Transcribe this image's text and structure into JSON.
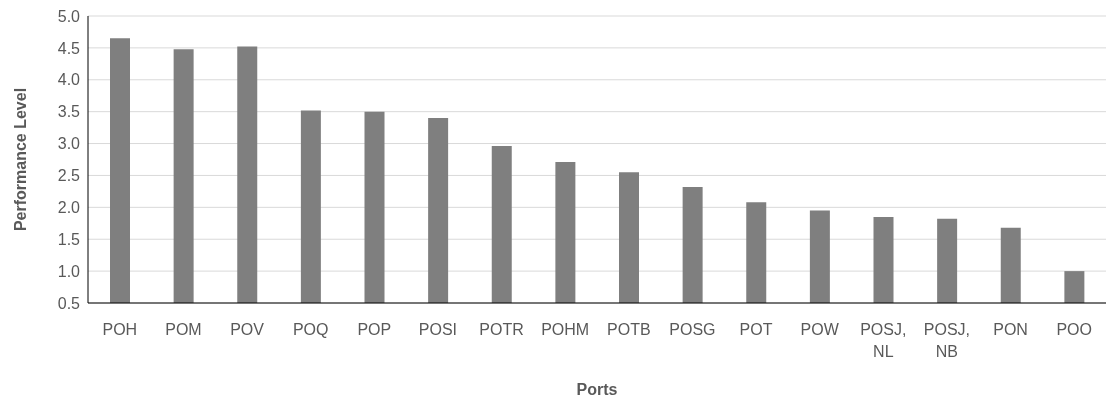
{
  "chart_data": {
    "type": "bar",
    "xlabel": "Ports",
    "ylabel": "Performance Level",
    "categories": [
      "POH",
      "POM",
      "POV",
      "POQ",
      "POP",
      "POSI",
      "POTR",
      "POHM",
      "POTB",
      "POSG",
      "POT",
      "POW",
      "POSJ, NL",
      "POSJ, NB",
      "PON",
      "POO"
    ],
    "values": [
      4.65,
      4.48,
      4.52,
      3.52,
      3.5,
      3.4,
      2.96,
      2.71,
      2.55,
      2.32,
      2.08,
      1.95,
      1.85,
      1.82,
      1.68,
      1.0
    ],
    "color": "#7f7f7f",
    "ylim": [
      0.5,
      5
    ],
    "yticks": [
      {
        "value": 0.5,
        "label": "0.5"
      },
      {
        "value": 1,
        "label": "1.0"
      },
      {
        "value": 1.5,
        "label": "1.5"
      },
      {
        "value": 2,
        "label": "2.0"
      },
      {
        "value": 2.5,
        "label": "2.5"
      },
      {
        "value": 3,
        "label": "3.0"
      },
      {
        "value": 3.5,
        "label": "3.5"
      },
      {
        "value": 4,
        "label": "4.0"
      },
      {
        "value": 4.5,
        "label": "4.5"
      },
      {
        "value": 5,
        "label": "5.0"
      }
    ],
    "grid": "y",
    "legend": false
  }
}
